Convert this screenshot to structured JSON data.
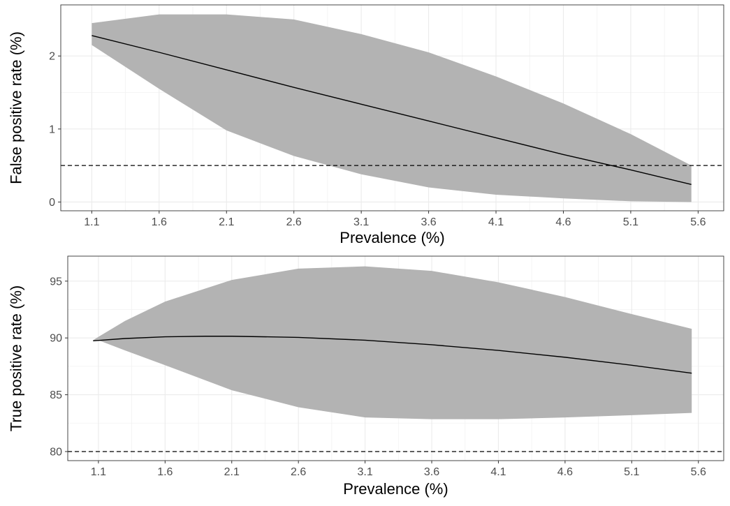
{
  "chart_data": [
    {
      "type": "line",
      "xlabel": "Prevalence (%)",
      "ylabel": "False positive rate (%)",
      "xlim": [
        0.87,
        5.79
      ],
      "ylim": [
        -0.12,
        2.7
      ],
      "x_ticks": [
        1.1,
        1.6,
        2.1,
        2.6,
        3.1,
        3.6,
        4.1,
        4.6,
        5.1,
        5.6
      ],
      "x_tick_labels": [
        "1.1",
        "1.6",
        "2.1",
        "2.6",
        "3.1",
        "3.6",
        "4.1",
        "4.6",
        "5.1",
        "5.6"
      ],
      "y_ticks": [
        0,
        1,
        2
      ],
      "y_tick_labels": [
        "0",
        "1",
        "2"
      ],
      "grid": true,
      "reference_line": {
        "y": 0.5,
        "style": "dashed",
        "color": "#000000"
      },
      "series": [
        {
          "kind": "line",
          "color": "#000000",
          "x": [
            1.1,
            1.6,
            2.1,
            2.6,
            3.1,
            3.6,
            4.1,
            4.6,
            5.1,
            5.55
          ],
          "y": [
            2.28,
            2.05,
            1.81,
            1.57,
            1.34,
            1.11,
            0.88,
            0.65,
            0.44,
            0.24
          ]
        },
        {
          "kind": "ribbon",
          "color": "#b3b3b3",
          "x": [
            1.1,
            1.6,
            2.1,
            2.6,
            3.1,
            3.6,
            4.1,
            4.6,
            5.1,
            5.55
          ],
          "lower": [
            2.15,
            1.55,
            0.98,
            0.63,
            0.38,
            0.2,
            0.1,
            0.05,
            0.01,
            0.0
          ],
          "upper": [
            2.45,
            2.57,
            2.57,
            2.5,
            2.3,
            2.05,
            1.72,
            1.35,
            0.93,
            0.5
          ]
        }
      ]
    },
    {
      "type": "line",
      "xlabel": "Prevalence (%)",
      "ylabel": "True positive rate (%)",
      "xlim": [
        0.87,
        5.79
      ],
      "ylim": [
        79.2,
        97.2
      ],
      "x_ticks": [
        1.1,
        1.6,
        2.1,
        2.6,
        3.1,
        3.6,
        4.1,
        4.6,
        5.1,
        5.6
      ],
      "x_tick_labels": [
        "1.1",
        "1.6",
        "2.1",
        "2.6",
        "3.1",
        "3.6",
        "4.1",
        "4.6",
        "5.1",
        "5.6"
      ],
      "y_ticks": [
        80,
        85,
        90,
        95
      ],
      "y_tick_labels": [
        "80",
        "85",
        "90",
        "95"
      ],
      "grid": true,
      "reference_line": {
        "y": 80,
        "style": "dashed",
        "color": "#000000"
      },
      "series": [
        {
          "kind": "line",
          "color": "#000000",
          "x": [
            1.06,
            1.3,
            1.6,
            1.9,
            2.1,
            2.6,
            3.1,
            3.6,
            4.1,
            4.6,
            5.1,
            5.55
          ],
          "y": [
            89.75,
            89.95,
            90.1,
            90.15,
            90.15,
            90.05,
            89.8,
            89.4,
            88.9,
            88.3,
            87.6,
            86.9
          ]
        },
        {
          "kind": "ribbon",
          "color": "#b3b3b3",
          "x": [
            1.06,
            1.1,
            1.3,
            1.6,
            2.1,
            2.6,
            3.1,
            3.6,
            4.1,
            4.6,
            5.1,
            5.55
          ],
          "lower": [
            89.8,
            89.8,
            88.9,
            87.6,
            85.4,
            83.9,
            83.0,
            82.85,
            82.85,
            83.0,
            83.2,
            83.4
          ],
          "upper": [
            89.8,
            90.1,
            91.5,
            93.2,
            95.1,
            96.1,
            96.3,
            95.9,
            94.9,
            93.6,
            92.1,
            90.8
          ]
        }
      ]
    }
  ]
}
